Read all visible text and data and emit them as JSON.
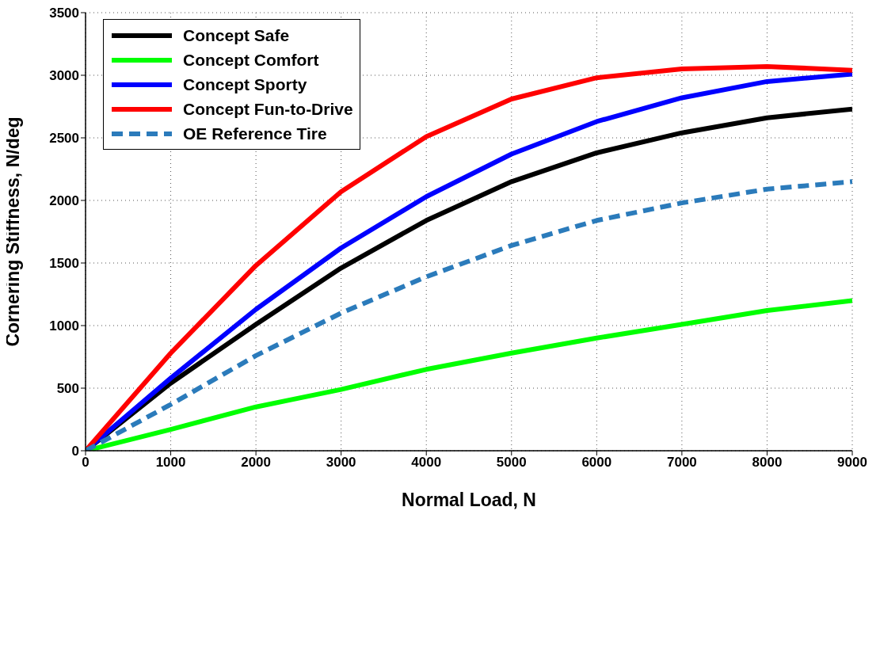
{
  "chart_data": {
    "type": "line",
    "xlabel": "Normal Load, N",
    "ylabel": "Cornering Stiffness, N/deg",
    "x": [
      0,
      1000,
      2000,
      3000,
      4000,
      5000,
      6000,
      7000,
      8000,
      9000
    ],
    "series": [
      {
        "name": "Concept Safe",
        "color": "#000000",
        "values": [
          0,
          540,
          1010,
          1460,
          1840,
          2150,
          2380,
          2540,
          2660,
          2730
        ]
      },
      {
        "name": "Concept Comfort",
        "color": "#00ff00",
        "values": [
          0,
          170,
          350,
          490,
          650,
          780,
          900,
          1010,
          1120,
          1200
        ]
      },
      {
        "name": "Concept Sporty",
        "color": "#0000ff",
        "values": [
          0,
          580,
          1130,
          1620,
          2030,
          2370,
          2630,
          2820,
          2950,
          3010
        ]
      },
      {
        "name": "Concept Fun-to-Drive",
        "color": "#ff0000",
        "values": [
          0,
          780,
          1480,
          2070,
          2510,
          2810,
          2980,
          3050,
          3070,
          3040
        ]
      },
      {
        "name": "OE Reference Tire",
        "color": "#2b7bbb",
        "line_style": "dashed",
        "values": [
          0,
          370,
          760,
          1100,
          1390,
          1640,
          1840,
          1980,
          2090,
          2150
        ]
      }
    ],
    "xlim": [
      0,
      9000
    ],
    "xticks": [
      0,
      1000,
      2000,
      3000,
      4000,
      5000,
      6000,
      7000,
      8000,
      9000
    ],
    "ylim": [
      0,
      3500
    ],
    "yticks": [
      0,
      500,
      1000,
      1500,
      2000,
      2500,
      3000,
      3500
    ],
    "grid": true,
    "legend": "top left",
    "marker": "none"
  }
}
